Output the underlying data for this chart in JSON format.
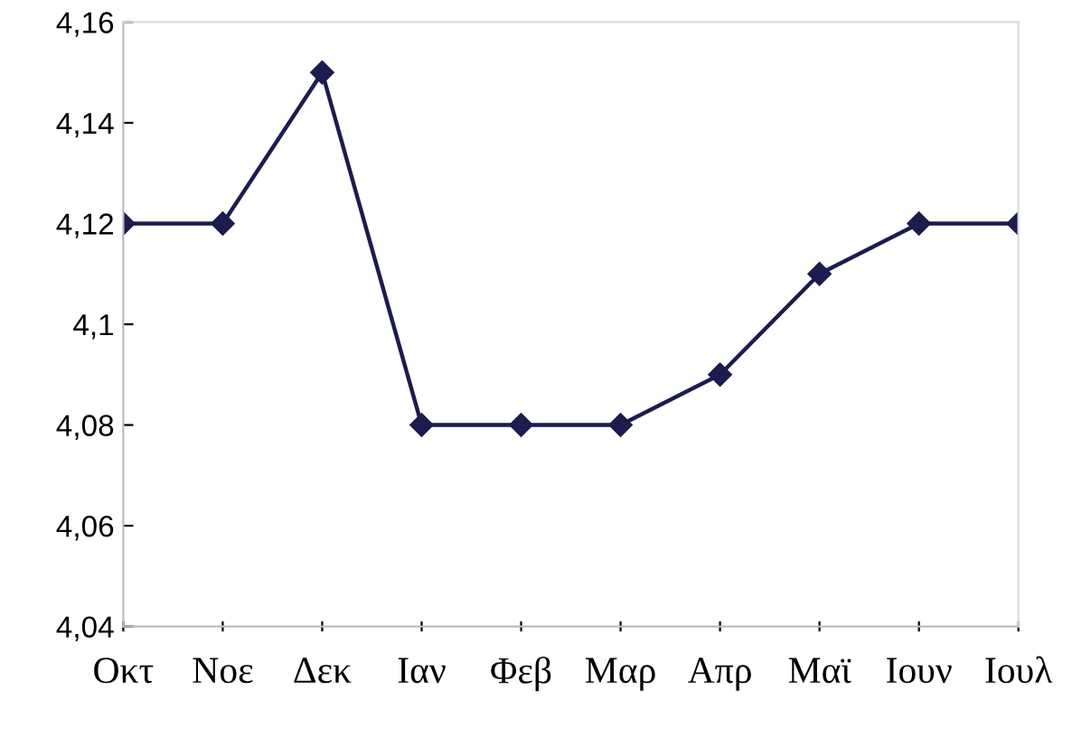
{
  "chart_data": {
    "type": "line",
    "categories": [
      "Οκτ",
      "Νοε",
      "Δεκ",
      "Ιαν",
      "Φεβ",
      "Μαρ",
      "Απρ",
      "Μαϊ",
      "Ιουν",
      "Ιουλ"
    ],
    "series": [
      {
        "color": "#1c1c4e",
        "values": [
          4.12,
          4.12,
          4.15,
          4.08,
          4.08,
          4.08,
          4.09,
          4.11,
          4.12,
          4.12
        ]
      }
    ],
    "ylim": [
      4.04,
      4.16
    ],
    "yticks": [
      {
        "value": 4.04,
        "label": "4,04"
      },
      {
        "value": 4.06,
        "label": "4,06"
      },
      {
        "value": 4.08,
        "label": "4,08"
      },
      {
        "value": 4.1,
        "label": "4,1"
      },
      {
        "value": 4.12,
        "label": "4,12"
      },
      {
        "value": 4.14,
        "label": "4,14"
      },
      {
        "value": 4.16,
        "label": "4,16"
      }
    ],
    "grid": false,
    "legend": false,
    "marker": "diamond",
    "line_style": "solid"
  }
}
